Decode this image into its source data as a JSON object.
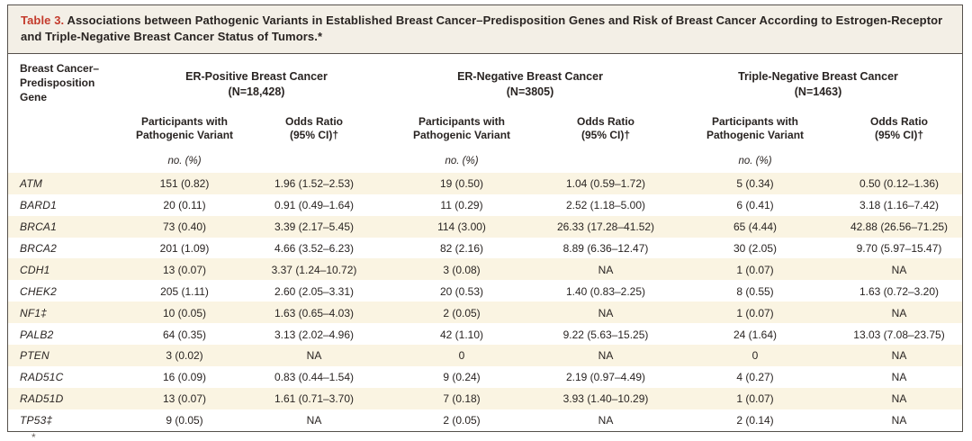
{
  "table": {
    "label": "Table 3.",
    "title": " Associations between Pathogenic Variants in Established Breast Cancer–Predisposition Genes and Risk of Breast Cancer According to Estrogen-Receptor and Triple-Negative Breast Cancer Status of Tumors.*",
    "gene_header": "Breast Cancer–\nPredisposition\nGene",
    "groups": [
      {
        "name": "ER-Positive Breast Cancer",
        "n": "(N=18,428)"
      },
      {
        "name": "ER-Negative Breast Cancer",
        "n": "(N=3805)"
      },
      {
        "name": "Triple-Negative Breast Cancer",
        "n": "(N=1463)"
      }
    ],
    "subheaders": {
      "participants": "Participants with\nPathogenic Variant",
      "odds_ratio": "Odds Ratio\n(95% CI)†",
      "units": "no. (%)"
    },
    "rows": [
      {
        "gene": "ATM",
        "ep_n": "151 (0.82)",
        "ep_or": "1.96 (1.52–2.53)",
        "en_n": "19 (0.50)",
        "en_or": "1.04 (0.59–1.72)",
        "tn_n": "5 (0.34)",
        "tn_or": "0.50 (0.12–1.36)"
      },
      {
        "gene": "BARD1",
        "ep_n": "20 (0.11)",
        "ep_or": "0.91 (0.49–1.64)",
        "en_n": "11 (0.29)",
        "en_or": "2.52 (1.18–5.00)",
        "tn_n": "6 (0.41)",
        "tn_or": "3.18 (1.16–7.42)"
      },
      {
        "gene": "BRCA1",
        "ep_n": "73 (0.40)",
        "ep_or": "3.39 (2.17–5.45)",
        "en_n": "114 (3.00)",
        "en_or": "26.33 (17.28–41.52)",
        "tn_n": "65 (4.44)",
        "tn_or": "42.88 (26.56–71.25)"
      },
      {
        "gene": "BRCA2",
        "ep_n": "201 (1.09)",
        "ep_or": "4.66 (3.52–6.23)",
        "en_n": "82 (2.16)",
        "en_or": "8.89 (6.36–12.47)",
        "tn_n": "30 (2.05)",
        "tn_or": "9.70 (5.97–15.47)"
      },
      {
        "gene": "CDH1",
        "ep_n": "13 (0.07)",
        "ep_or": "3.37 (1.24–10.72)",
        "en_n": "3 (0.08)",
        "en_or": "NA",
        "tn_n": "1 (0.07)",
        "tn_or": "NA"
      },
      {
        "gene": "CHEK2",
        "ep_n": "205 (1.11)",
        "ep_or": "2.60 (2.05–3.31)",
        "en_n": "20 (0.53)",
        "en_or": "1.40 (0.83–2.25)",
        "tn_n": "8 (0.55)",
        "tn_or": "1.63 (0.72–3.20)"
      },
      {
        "gene": "NF1‡",
        "ep_n": "10 (0.05)",
        "ep_or": "1.63 (0.65–4.03)",
        "en_n": "2 (0.05)",
        "en_or": "NA",
        "tn_n": "1 (0.07)",
        "tn_or": "NA"
      },
      {
        "gene": "PALB2",
        "ep_n": "64 (0.35)",
        "ep_or": "3.13 (2.02–4.96)",
        "en_n": "42 (1.10)",
        "en_or": "9.22 (5.63–15.25)",
        "tn_n": "24 (1.64)",
        "tn_or": "13.03 (7.08–23.75)"
      },
      {
        "gene": "PTEN",
        "ep_n": "3 (0.02)",
        "ep_or": "NA",
        "en_n": "0",
        "en_or": "NA",
        "tn_n": "0",
        "tn_or": "NA"
      },
      {
        "gene": "RAD51C",
        "ep_n": "16 (0.09)",
        "ep_or": "0.83 (0.44–1.54)",
        "en_n": "9 (0.24)",
        "en_or": "2.19 (0.97–4.49)",
        "tn_n": "4 (0.27)",
        "tn_or": "NA"
      },
      {
        "gene": "RAD51D",
        "ep_n": "13 (0.07)",
        "ep_or": "1.61 (0.71–3.70)",
        "en_n": "7 (0.18)",
        "en_or": "3.93 (1.40–10.29)",
        "tn_n": "1 (0.07)",
        "tn_or": "NA"
      },
      {
        "gene": "TP53‡",
        "ep_n": "9 (0.05)",
        "ep_or": "NA",
        "en_n": "2 (0.05)",
        "en_or": "NA",
        "tn_n": "2 (0.14)",
        "tn_or": "NA"
      }
    ],
    "footnote_marker": "*"
  },
  "colors": {
    "accent_red": "#c43b2c",
    "stripe": "#faf4e2",
    "title_bg": "#f3efe6",
    "frame": "#55504b"
  }
}
